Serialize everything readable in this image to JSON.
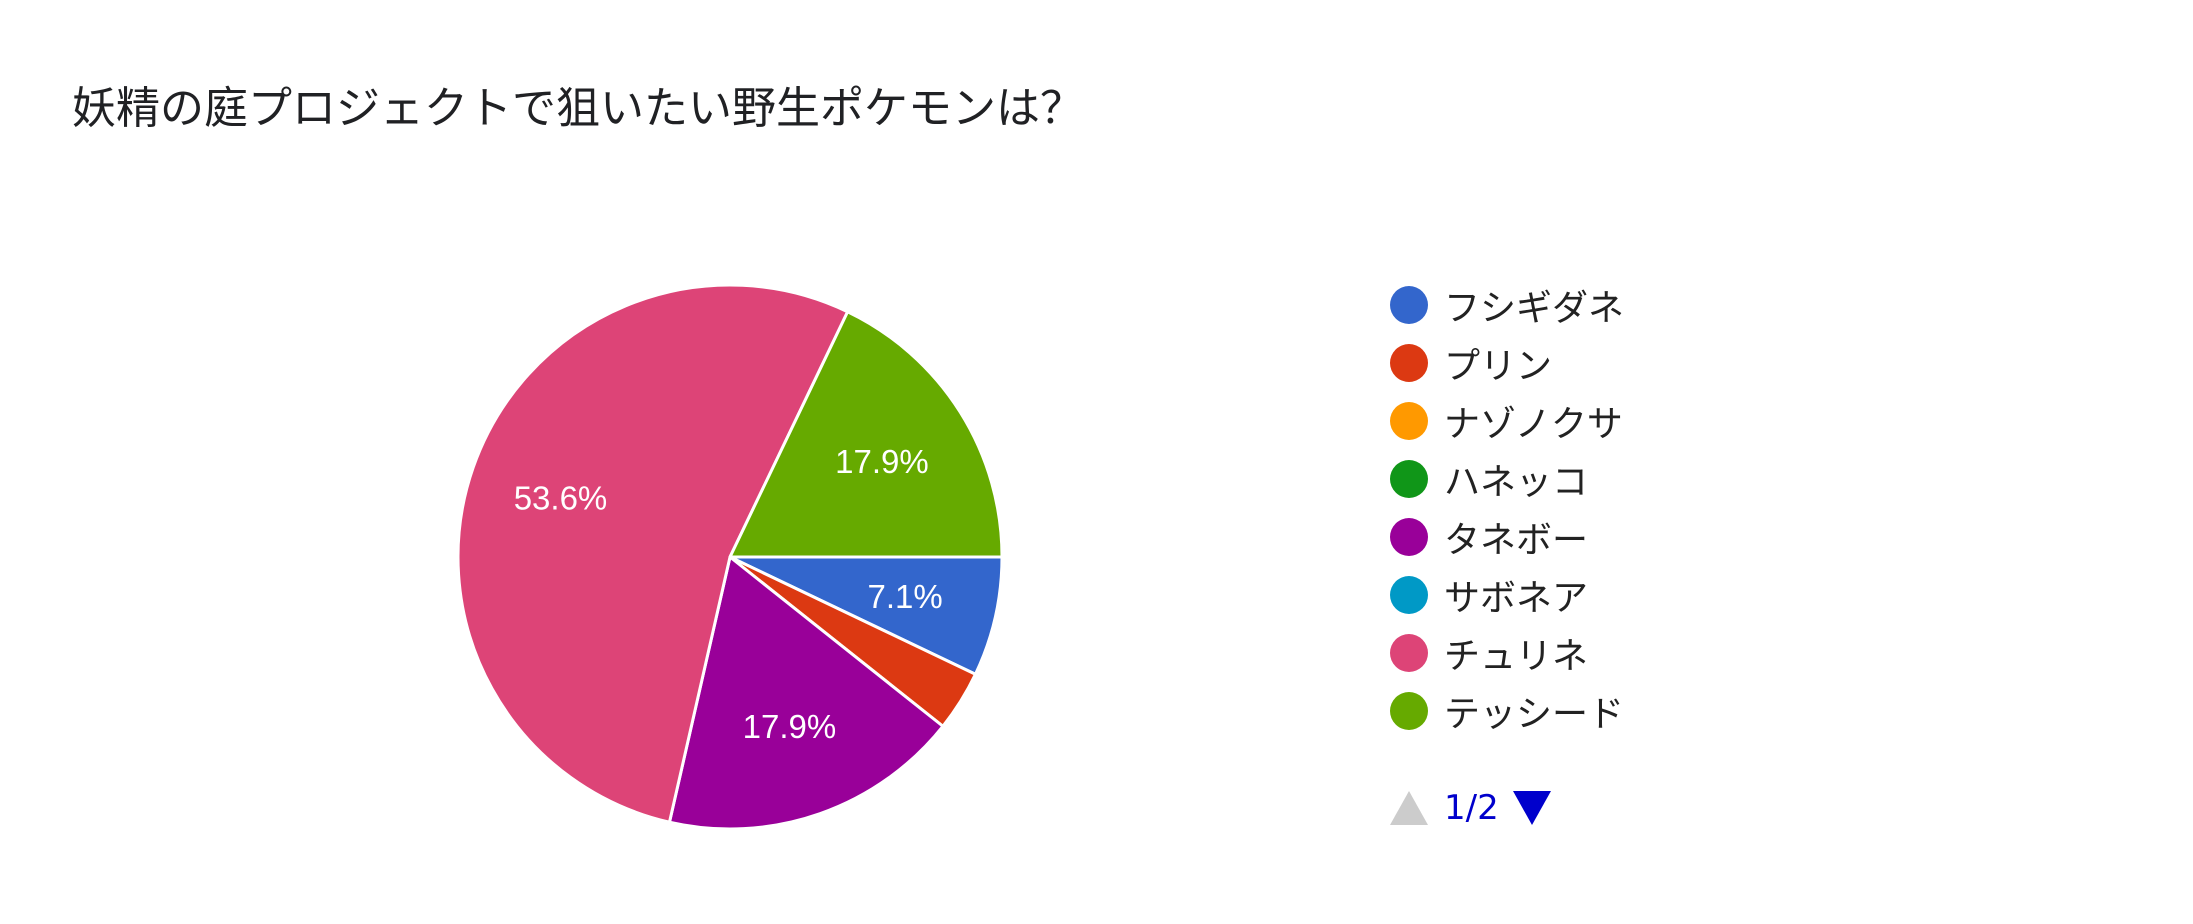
{
  "title": "妖精の庭プロジェクトで狙いたい野生ポケモンは？",
  "chart_data": {
    "type": "pie",
    "title": "妖精の庭プロジェクトで狙いたい野生ポケモンは？",
    "categories": [
      "フシギダネ",
      "プリン",
      "ナゾノクサ",
      "ハネッコ",
      "タネボー",
      "サボネア",
      "チュリネ",
      "テッシード"
    ],
    "values": [
      7.1,
      3.6,
      0,
      0,
      17.9,
      0,
      53.6,
      17.9
    ],
    "value_labels": [
      "7.1%",
      "",
      "",
      "",
      "17.9%",
      "",
      "53.6%",
      "17.9%"
    ],
    "colors": [
      "#3366cc",
      "#dc3912",
      "#ff9900",
      "#109618",
      "#990099",
      "#0099c6",
      "#dd4477",
      "#66aa00"
    ],
    "legend_position": "right"
  },
  "legend": {
    "items": [
      {
        "label": "フシギダネ",
        "color": "#3366cc"
      },
      {
        "label": "プリン",
        "color": "#dc3912"
      },
      {
        "label": "ナゾノクサ",
        "color": "#ff9900"
      },
      {
        "label": "ハネッコ",
        "color": "#109618"
      },
      {
        "label": "タネボー",
        "color": "#990099"
      },
      {
        "label": "サボネア",
        "color": "#0099c6"
      },
      {
        "label": "チュリネ",
        "color": "#dd4477"
      },
      {
        "label": "テッシード",
        "color": "#66aa00"
      }
    ]
  },
  "pager": {
    "text": "1/2",
    "prev_icon": "triangle-up-icon",
    "next_icon": "triangle-down-icon"
  }
}
